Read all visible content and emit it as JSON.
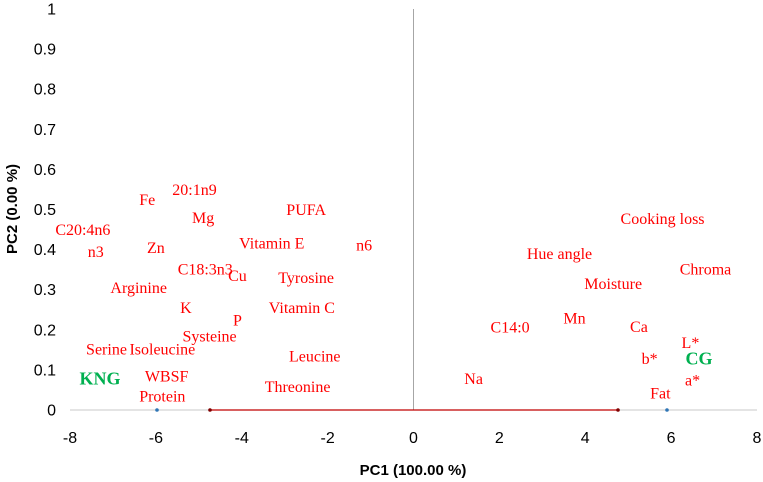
{
  "chart_data": {
    "type": "scatter",
    "title": "",
    "xlabel": "PC1 (100.00 %)",
    "ylabel": "PC2 (0.00 %)",
    "xlim": [
      -8,
      8
    ],
    "ylim": [
      0,
      1
    ],
    "x_ticks": [
      "-8",
      "-6",
      "-4",
      "-2",
      "0",
      "2",
      "4",
      "6",
      "8"
    ],
    "y_ticks": [
      "0",
      "0.1",
      "0.2",
      "0.3",
      "0.4",
      "0.5",
      "0.6",
      "0.7",
      "0.8",
      "0.9",
      "1"
    ],
    "label_color": "#ff0000",
    "group_color": "#00b050",
    "variables": [
      {
        "label": "Fe",
        "x": -6.2,
        "y": 0.525
      },
      {
        "label": "20:1n9",
        "x": -5.1,
        "y": 0.55
      },
      {
        "label": "Mg",
        "x": -4.9,
        "y": 0.48
      },
      {
        "label": "PUFA",
        "x": -2.5,
        "y": 0.5
      },
      {
        "label": "C20:4n6",
        "x": -7.7,
        "y": 0.45
      },
      {
        "label": "n3",
        "x": -7.4,
        "y": 0.395
      },
      {
        "label": "Zn",
        "x": -6.0,
        "y": 0.405
      },
      {
        "label": "Vitamin E",
        "x": -3.3,
        "y": 0.417
      },
      {
        "label": "n6",
        "x": -1.15,
        "y": 0.412
      },
      {
        "label": "C18:3n3",
        "x": -4.85,
        "y": 0.352
      },
      {
        "label": "Cu",
        "x": -4.1,
        "y": 0.335
      },
      {
        "label": "Tyrosine",
        "x": -2.5,
        "y": 0.33
      },
      {
        "label": "Arginine",
        "x": -6.4,
        "y": 0.305
      },
      {
        "label": "K",
        "x": -5.3,
        "y": 0.255
      },
      {
        "label": "Vitamin C",
        "x": -2.6,
        "y": 0.255
      },
      {
        "label": "P",
        "x": -4.1,
        "y": 0.225
      },
      {
        "label": "Systeine",
        "x": -4.75,
        "y": 0.185
      },
      {
        "label": "Serine",
        "x": -7.15,
        "y": 0.152
      },
      {
        "label": "Isoleucine",
        "x": -5.85,
        "y": 0.152
      },
      {
        "label": "Leucine",
        "x": -2.3,
        "y": 0.135
      },
      {
        "label": "WBSF",
        "x": -5.75,
        "y": 0.085
      },
      {
        "label": "Threonine",
        "x": -2.7,
        "y": 0.058
      },
      {
        "label": "Protein",
        "x": -5.85,
        "y": 0.035
      },
      {
        "label": "Cooking loss",
        "x": 5.8,
        "y": 0.477
      },
      {
        "label": "Hue angle",
        "x": 3.4,
        "y": 0.39
      },
      {
        "label": "Chroma",
        "x": 6.8,
        "y": 0.352
      },
      {
        "label": "Moisture",
        "x": 4.65,
        "y": 0.315
      },
      {
        "label": "C14:0",
        "x": 2.25,
        "y": 0.207
      },
      {
        "label": "Mn",
        "x": 3.75,
        "y": 0.23
      },
      {
        "label": "Ca",
        "x": 5.25,
        "y": 0.208
      },
      {
        "label": "L*",
        "x": 6.45,
        "y": 0.168
      },
      {
        "label": "b*",
        "x": 5.5,
        "y": 0.128
      },
      {
        "label": "Na",
        "x": 1.4,
        "y": 0.078
      },
      {
        "label": "a*",
        "x": 6.5,
        "y": 0.075
      },
      {
        "label": "Fat",
        "x": 5.75,
        "y": 0.043
      }
    ],
    "groups": [
      {
        "label": "KNG",
        "x": -7.3,
        "y": 0.078
      },
      {
        "label": "CG",
        "x": 6.65,
        "y": 0.128
      }
    ]
  }
}
